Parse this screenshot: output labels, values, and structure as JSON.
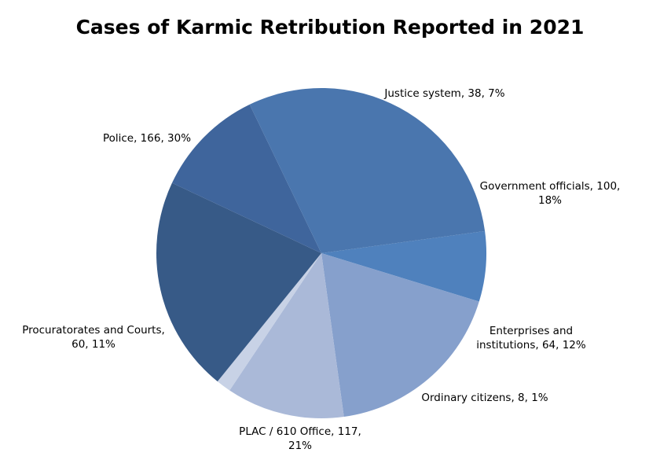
{
  "chart_data": {
    "type": "pie",
    "title": "Cases of Karmic Retribution Reported in 2021",
    "slices": [
      {
        "name": "Justice system",
        "value": 38,
        "percent": "7%",
        "color": "#4f81bd"
      },
      {
        "name": "Government officials",
        "value": 100,
        "percent": "18%",
        "color": "#86a0cc"
      },
      {
        "name": "Enterprises and institutions",
        "value": 64,
        "percent": "12%",
        "color": "#aab9d8"
      },
      {
        "name": "Ordinary citizens",
        "value": 8,
        "percent": "1%",
        "color": "#c8d2e6"
      },
      {
        "name": "PLAC / 610 Office",
        "value": 117,
        "percent": "21%",
        "color": "#375a87"
      },
      {
        "name": "Procuratorates and Courts",
        "value": 60,
        "percent": "11%",
        "color": "#3f659c"
      },
      {
        "name": "Police",
        "value": 166,
        "percent": "30%",
        "color": "#4a76ae"
      }
    ],
    "labels": [
      {
        "lines": [
          "Justice system, 38, 7%"
        ]
      },
      {
        "lines": [
          "Government officials, 100,",
          "18%"
        ]
      },
      {
        "lines": [
          "Enterprises and",
          "institutions, 64, 12%"
        ]
      },
      {
        "lines": [
          "Ordinary citizens, 8, 1%"
        ]
      },
      {
        "lines": [
          "PLAC / 610 Office, 117,",
          "21%"
        ]
      },
      {
        "lines": [
          "Procuratorates and Courts,",
          "60, 11%"
        ]
      },
      {
        "lines": [
          "Police, 166, 30%"
        ]
      }
    ],
    "legend": "none"
  }
}
